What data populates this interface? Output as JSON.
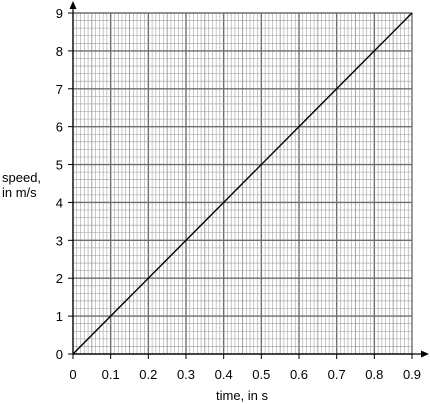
{
  "chart_data": {
    "type": "line",
    "title": "",
    "xlabel": "time, in s",
    "ylabel": [
      "speed,",
      "in m/s"
    ],
    "xlim": [
      0,
      0.9
    ],
    "ylim": [
      0,
      9
    ],
    "x_ticks": [
      "0",
      "0.1",
      "0.2",
      "0.3",
      "0.4",
      "0.5",
      "0.6",
      "0.7",
      "0.8",
      "0.9"
    ],
    "y_ticks": [
      "0",
      "1",
      "2",
      "3",
      "4",
      "5",
      "6",
      "7",
      "8",
      "9"
    ],
    "grid": true,
    "legend": "none",
    "series": [
      {
        "x": [
          0,
          0.9
        ],
        "y": [
          0,
          9
        ]
      }
    ]
  },
  "colors": {
    "line": "#000000",
    "grid_fine": "#9a9a9a",
    "grid_major": "#6e6e6e",
    "axis": "#000000"
  }
}
